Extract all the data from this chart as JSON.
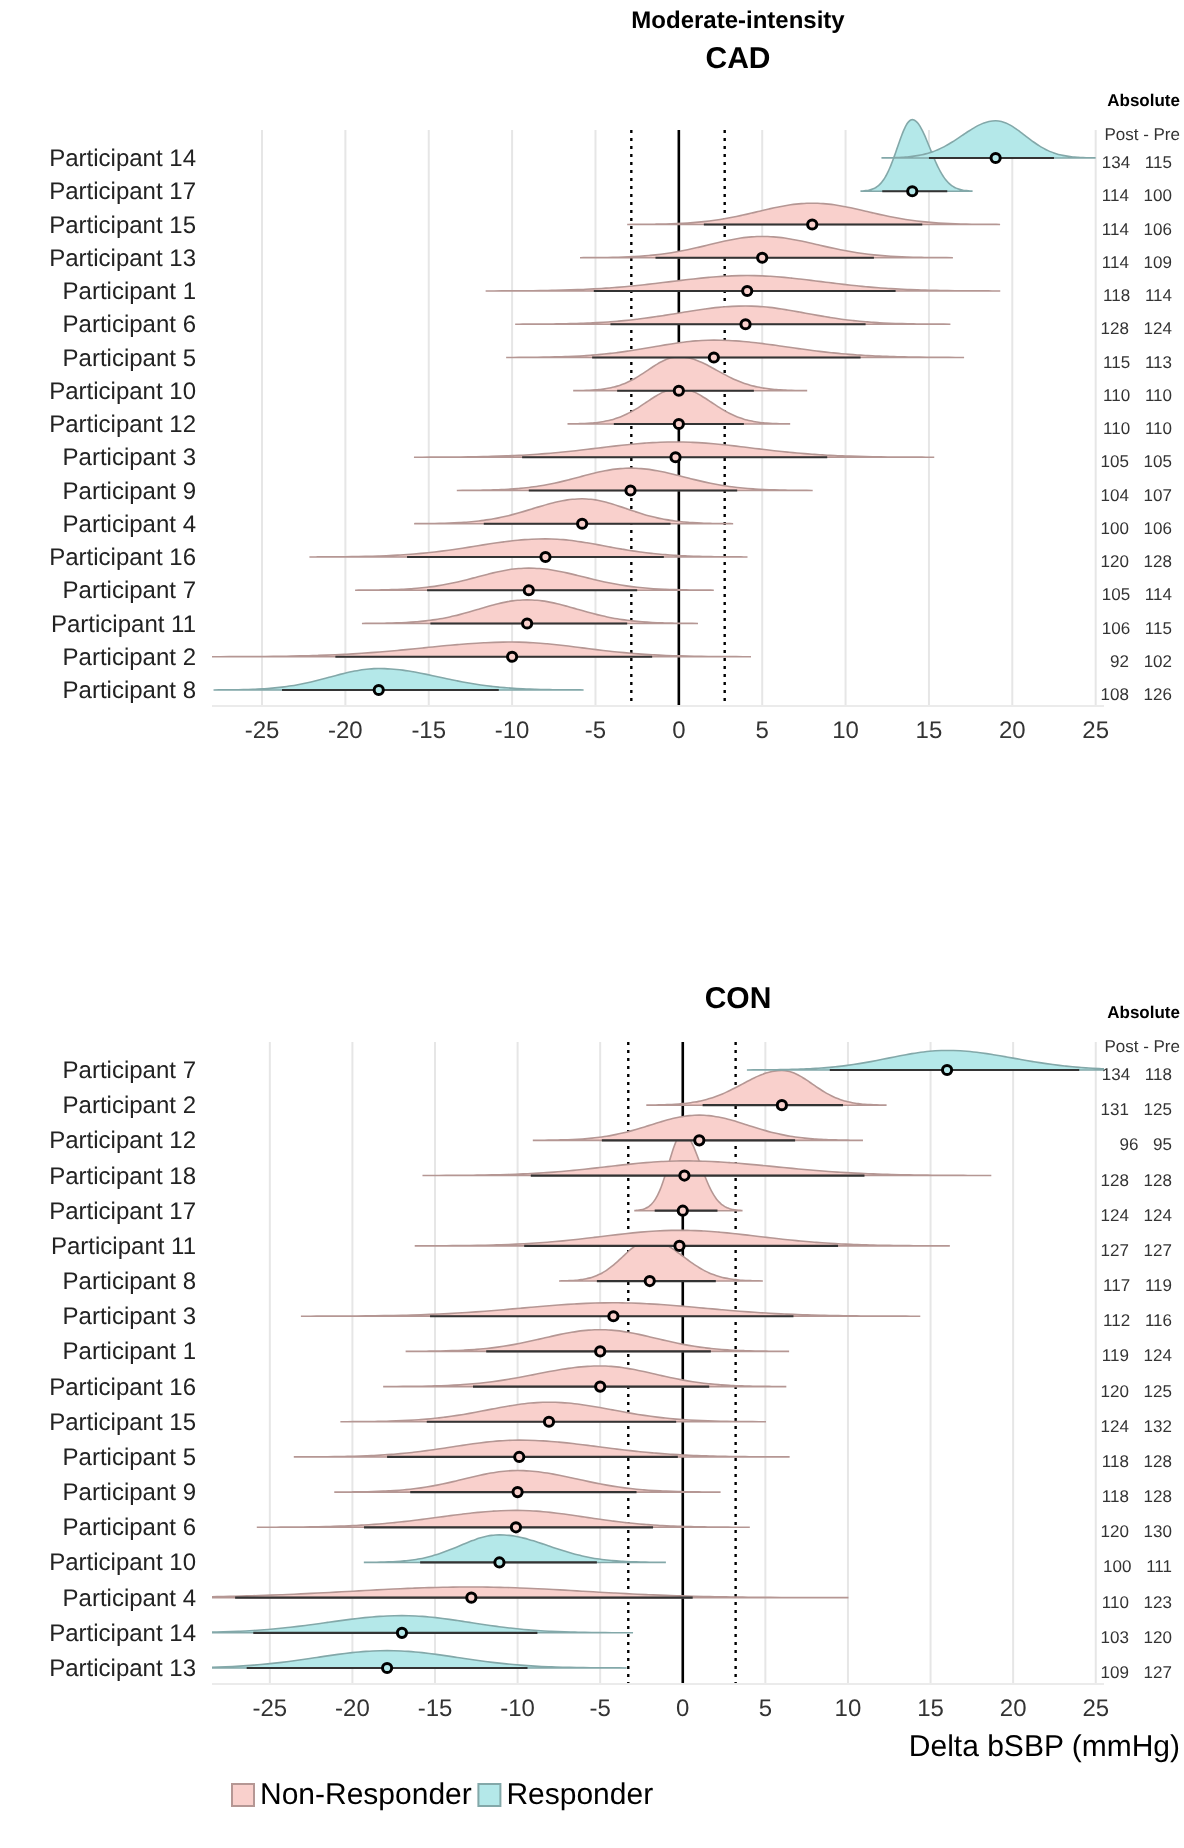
{
  "chart_data": [
    {
      "type": "scatter",
      "orientation": "horizontal",
      "title": "Moderate-intensity",
      "subtitle": "CAD",
      "categories": [
        "Participant 14",
        "Participant 17",
        "Participant 15",
        "Participant 13",
        "Participant 1",
        "Participant 6",
        "Participant 5",
        "Participant 10",
        "Participant 12",
        "Participant 3",
        "Participant 9",
        "Participant 4",
        "Participant 16",
        "Participant 7",
        "Participant 11",
        "Participant 2",
        "Participant 8"
      ],
      "series": [
        {
          "color": "#f9d0cc",
          "values": [
            null,
            null,
            8,
            5,
            4.1,
            4,
            2.1,
            0,
            0,
            -0.2,
            -2.9,
            -5.8,
            -8,
            -9,
            -9.1,
            -10,
            null
          ],
          "errors": [
            null,
            null,
            [
              1.5,
              14.6
            ],
            [
              -1.4,
              11.7
            ],
            [
              -5.1,
              13
            ],
            [
              -4.1,
              11.2
            ],
            [
              -5.2,
              10.9
            ],
            [
              -3.7,
              4.5
            ],
            [
              -3.9,
              3.9
            ],
            [
              -9.4,
              8.9
            ],
            [
              -9,
              3.5
            ],
            [
              -11.7,
              -0.5
            ],
            [
              -16.3,
              -0.9
            ],
            [
              -15.1,
              -2.5
            ],
            [
              -14.9,
              -3.1
            ],
            [
              -20.6,
              -1.6
            ],
            null
          ]
        },
        {
          "color": "#b4e8e9",
          "values": [
            19,
            14,
            null,
            null,
            null,
            null,
            null,
            null,
            null,
            null,
            null,
            null,
            null,
            null,
            null,
            null,
            -18
          ],
          "errors": [
            [
              15,
              22.5
            ],
            [
              12.2,
              16.1
            ],
            null,
            null,
            null,
            null,
            null,
            null,
            null,
            null,
            null,
            null,
            null,
            null,
            null,
            null,
            [
              -23.8,
              -10.8
            ]
          ]
        }
      ],
      "xlim": [
        -28,
        25.5
      ],
      "xticks": [
        -25,
        -20,
        -15,
        -10,
        -5,
        0,
        5,
        10,
        15,
        20,
        25
      ],
      "grid": "x",
      "marker": "circle",
      "ref_lines": [
        {
          "axis": "x",
          "value": 0,
          "color": "#000000",
          "line_style": "solid"
        },
        {
          "axis": "x",
          "value": -2.85,
          "color": "#000000",
          "line_style": "dotted"
        },
        {
          "axis": "x",
          "value": 2.75,
          "color": "#000000",
          "line_style": "dotted"
        }
      ],
      "annotations": [
        "Absolute",
        "Post - Pre",
        "134 115",
        "114 100",
        "114 106",
        "114 109",
        "118 114",
        "128 124",
        "115 113",
        "110 110",
        "110 110",
        "105 105",
        "104 107",
        "100 106",
        "120 128",
        "105 114",
        "106 115",
        "92 102",
        "108 126"
      ]
    },
    {
      "type": "scatter",
      "orientation": "horizontal",
      "title": "CON",
      "xlabel": "Delta bSBP (mmHg)",
      "categories": [
        "Participant 7",
        "Participant 2",
        "Participant 12",
        "Participant 18",
        "Participant 17",
        "Participant 11",
        "Participant 8",
        "Participant 3",
        "Participant 1",
        "Participant 16",
        "Participant 15",
        "Participant 5",
        "Participant 9",
        "Participant 6",
        "Participant 10",
        "Participant 4",
        "Participant 14",
        "Participant 13"
      ],
      "series": [
        {
          "name": "Non-Responder",
          "color": "#f9d0cc",
          "values": [
            null,
            6,
            1,
            0.1,
            0,
            -0.2,
            -2,
            -4.2,
            -5,
            -5,
            -8.1,
            -9.9,
            -10,
            -10.1,
            null,
            -12.8,
            null,
            null
          ],
          "errors": [
            null,
            [
              1.2,
              9.7
            ],
            [
              -4.9,
              6.8
            ],
            [
              -9.2,
              11
            ],
            [
              -1.7,
              2.1
            ],
            [
              -9.6,
              9.4
            ],
            [
              -5.2,
              2
            ],
            [
              -15.3,
              6.7
            ],
            [
              -11.9,
              1.7
            ],
            [
              -12.7,
              1.6
            ],
            [
              -15.5,
              -0.4
            ],
            [
              -17.9,
              -0.3
            ],
            [
              -16.5,
              -2.8
            ],
            [
              -19.3,
              -1.8
            ],
            null,
            [
              -27.1,
              0.6
            ],
            null,
            null
          ]
        },
        {
          "name": "Responder",
          "color": "#b4e8e9",
          "values": [
            16,
            null,
            null,
            null,
            null,
            null,
            null,
            null,
            null,
            null,
            null,
            null,
            null,
            null,
            -11.1,
            null,
            -17,
            -17.9
          ],
          "errors": [
            [
              8.9,
              24
            ],
            null,
            null,
            null,
            null,
            null,
            null,
            null,
            null,
            null,
            null,
            null,
            null,
            null,
            [
              -15.9,
              -5.2
            ],
            null,
            [
              -26,
              -8.8
            ],
            [
              -26.4,
              -9.4
            ]
          ]
        }
      ],
      "xlim": [
        -28.5,
        25.5
      ],
      "xticks": [
        -25,
        -20,
        -15,
        -10,
        -5,
        0,
        5,
        10,
        15,
        20,
        25
      ],
      "grid": "x",
      "marker": "circle",
      "legend": "bottom",
      "ref_lines": [
        {
          "axis": "x",
          "value": 0,
          "color": "#000000",
          "line_style": "solid"
        },
        {
          "axis": "x",
          "value": -3.3,
          "color": "#000000",
          "line_style": "dotted"
        },
        {
          "axis": "x",
          "value": 3.2,
          "color": "#000000",
          "line_style": "dotted"
        }
      ],
      "annotations": [
        "Absolute",
        "Post - Pre",
        "134 118",
        "131 125",
        "96 95",
        "128 128",
        "124 124",
        "127 127",
        "117 119",
        "112 116",
        "119 124",
        "120 125",
        "124 132",
        "118 128",
        "118 128",
        "120 130",
        "100 111",
        "110 123",
        "103 120",
        "109 127"
      ]
    }
  ]
}
